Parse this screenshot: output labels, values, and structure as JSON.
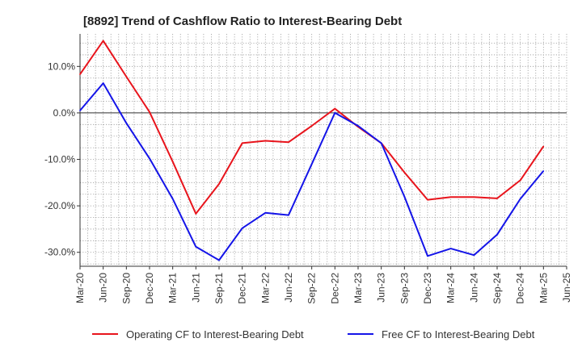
{
  "chart_data": {
    "type": "line",
    "title": "[8892]  Trend of Cashflow Ratio to Interest-Bearing Debt",
    "xlabel": "",
    "ylabel": "",
    "x": [
      "Mar-20",
      "Jun-20",
      "Sep-20",
      "Dec-20",
      "Mar-21",
      "Jun-21",
      "Sep-21",
      "Dec-21",
      "Mar-22",
      "Jun-22",
      "Sep-22",
      "Dec-22",
      "Mar-23",
      "Jun-23",
      "Sep-23",
      "Dec-23",
      "Mar-24",
      "Jun-24",
      "Sep-24",
      "Dec-24",
      "Mar-25",
      "Jun-25"
    ],
    "ylim": [
      -33,
      17
    ],
    "yticks": [
      10,
      0,
      -10,
      -20,
      -30
    ],
    "ytick_labels": [
      "10.0%",
      "0.0%",
      "-10.0%",
      "-20.0%",
      "-30.0%"
    ],
    "grid": true,
    "legend_position": "bottom",
    "series": [
      {
        "name": "Operating CF to Interest-Bearing Debt",
        "color": "#e8141c",
        "values": [
          8.3,
          15.5,
          7.8,
          0.2,
          -10.5,
          -21.7,
          -15.3,
          -6.5,
          -6.0,
          -6.3,
          -2.8,
          0.9,
          -3.0,
          -6.5,
          -12.8,
          -18.7,
          -18.1,
          -18.1,
          -18.4,
          -14.5,
          -7.2,
          null
        ]
      },
      {
        "name": "Free CF to Interest-Bearing Debt",
        "color": "#1414e8",
        "values": [
          0.5,
          6.4,
          -2.2,
          -9.8,
          -18.5,
          -28.8,
          -31.7,
          -24.8,
          -21.5,
          -22.0,
          -11.0,
          0.0,
          -2.8,
          -6.5,
          -18.0,
          -30.8,
          -29.2,
          -30.6,
          -26.2,
          -18.5,
          -12.5,
          null
        ]
      }
    ]
  }
}
